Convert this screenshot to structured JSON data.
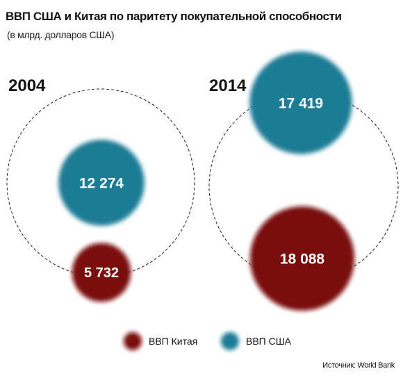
{
  "header": {
    "title": "ВВП США и Китая по паритету покупательной способности",
    "subtitle": "(в млрд. долларов США)"
  },
  "source": "Источник: World Bank",
  "colors": {
    "china": "#7a0a0a",
    "usa": "#1e7c95"
  },
  "chart_data": {
    "type": "bubble",
    "title": "ВВП США и Китая по паритету покупательной способности",
    "subtitle": "(в млрд. долларов США)",
    "unit": "млрд. долларов США",
    "series": [
      {
        "name": "ВВП Китая",
        "key": "china"
      },
      {
        "name": "ВВП США",
        "key": "usa"
      }
    ],
    "groups": [
      {
        "year": "2004",
        "values": [
          {
            "series": "usa",
            "value": 12274,
            "label": "12 274"
          },
          {
            "series": "china",
            "value": 5732,
            "label": "5 732"
          }
        ]
      },
      {
        "year": "2014",
        "values": [
          {
            "series": "usa",
            "value": 17419,
            "label": "17 419"
          },
          {
            "series": "china",
            "value": 18088,
            "label": "18 088"
          }
        ]
      }
    ],
    "legend": [
      {
        "label": "ВВП Китая",
        "series": "china"
      },
      {
        "label": "ВВП США",
        "series": "usa"
      }
    ],
    "legend_position": "bottom"
  }
}
